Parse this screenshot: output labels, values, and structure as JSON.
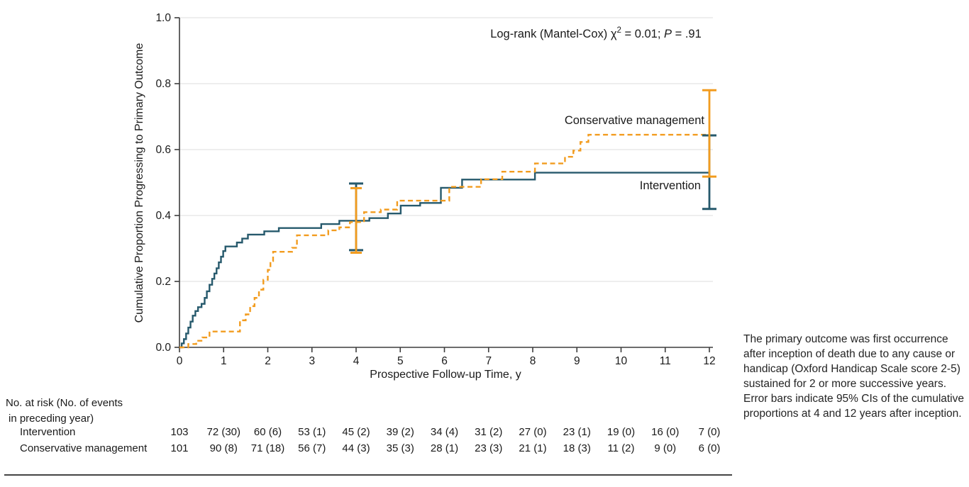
{
  "figure": {
    "annotation": {
      "prefix": "Log-rank (Mantel-Cox) χ",
      "sup": "2",
      "mid": " = 0.01; ",
      "p_label": "P",
      "p_value": " = .91"
    }
  },
  "chart_data": {
    "type": "line",
    "subtype": "kaplan-meier-step-curves",
    "title": "",
    "xlabel": "Prospective Follow-up Time, y",
    "ylabel": "Cumulative Proportion Progressing to Primary Outcome",
    "xlim": [
      0,
      12
    ],
    "ylim": [
      0,
      1.0
    ],
    "x_ticks": [
      "0",
      "1",
      "2",
      "3",
      "4",
      "5",
      "6",
      "7",
      "8",
      "9",
      "10",
      "11",
      "12"
    ],
    "y_ticks": [
      "0.0",
      "0.2",
      "0.4",
      "0.6",
      "0.8",
      "1.0"
    ],
    "grid": "horizontal gridlines at each y tick",
    "legend_position": "labels placed inline near curve ends",
    "series": [
      {
        "name": "Intervention",
        "line_style": "solid",
        "color": "#26596C",
        "steps": [
          [
            0,
            0
          ],
          [
            0.05,
            0.012
          ],
          [
            0.1,
            0.025
          ],
          [
            0.15,
            0.042
          ],
          [
            0.2,
            0.06
          ],
          [
            0.25,
            0.078
          ],
          [
            0.3,
            0.096
          ],
          [
            0.36,
            0.11
          ],
          [
            0.42,
            0.122
          ],
          [
            0.5,
            0.132
          ],
          [
            0.57,
            0.15
          ],
          [
            0.62,
            0.17
          ],
          [
            0.68,
            0.19
          ],
          [
            0.74,
            0.208
          ],
          [
            0.79,
            0.224
          ],
          [
            0.84,
            0.24
          ],
          [
            0.89,
            0.258
          ],
          [
            0.94,
            0.275
          ],
          [
            0.99,
            0.292
          ],
          [
            1.04,
            0.306
          ],
          [
            1.3,
            0.318
          ],
          [
            1.42,
            0.33
          ],
          [
            1.55,
            0.342
          ],
          [
            1.92,
            0.352
          ],
          [
            2.25,
            0.362
          ],
          [
            3.21,
            0.374
          ],
          [
            3.62,
            0.384
          ],
          [
            4.3,
            0.392
          ],
          [
            4.72,
            0.406
          ],
          [
            5.01,
            0.43
          ],
          [
            5.45,
            0.438
          ],
          [
            5.92,
            0.484
          ],
          [
            6.4,
            0.509
          ],
          [
            8.05,
            0.53
          ],
          [
            12,
            0.53
          ]
        ]
      },
      {
        "name": "Conservative management",
        "line_style": "dashed",
        "color": "#F29C1F",
        "steps": [
          [
            0,
            0
          ],
          [
            0.2,
            0.01
          ],
          [
            0.38,
            0.02
          ],
          [
            0.52,
            0.03
          ],
          [
            0.68,
            0.048
          ],
          [
            1.37,
            0.082
          ],
          [
            1.5,
            0.1
          ],
          [
            1.6,
            0.125
          ],
          [
            1.7,
            0.15
          ],
          [
            1.8,
            0.175
          ],
          [
            1.9,
            0.205
          ],
          [
            2.0,
            0.235
          ],
          [
            2.06,
            0.262
          ],
          [
            2.12,
            0.29
          ],
          [
            2.55,
            0.302
          ],
          [
            2.66,
            0.34
          ],
          [
            3.37,
            0.355
          ],
          [
            3.62,
            0.364
          ],
          [
            3.86,
            0.38
          ],
          [
            4.18,
            0.41
          ],
          [
            4.56,
            0.418
          ],
          [
            4.93,
            0.445
          ],
          [
            6.11,
            0.487
          ],
          [
            6.83,
            0.51
          ],
          [
            7.31,
            0.533
          ],
          [
            8.05,
            0.558
          ],
          [
            8.73,
            0.578
          ],
          [
            8.92,
            0.597
          ],
          [
            9.08,
            0.623
          ],
          [
            9.26,
            0.645
          ],
          [
            12,
            0.645
          ]
        ]
      }
    ],
    "error_bars": {
      "note": "95% CIs of cumulative proportions at 4 and 12 years",
      "bars": [
        {
          "series": "Intervention",
          "x": 4,
          "low": 0.295,
          "high": 0.497,
          "cap": 10
        },
        {
          "series": "Conservative management",
          "x": 4,
          "low": 0.287,
          "high": 0.483,
          "cap": 8
        },
        {
          "series": "Intervention",
          "x": 12,
          "low": 0.42,
          "high": 0.643,
          "cap": 10
        },
        {
          "series": "Conservative management",
          "x": 12,
          "low": 0.518,
          "high": 0.78,
          "cap": 10
        }
      ]
    }
  },
  "risk_table": {
    "header_lines": [
      "No. at risk (No. of events",
      "in preceding year)"
    ],
    "rows": [
      {
        "label": "Intervention",
        "values": [
          "103",
          "72 (30)",
          "60 (6)",
          "53 (1)",
          "45 (2)",
          "39 (2)",
          "34 (4)",
          "31 (2)",
          "27 (0)",
          "23 (1)",
          "19 (0)",
          "16 (0)",
          "7 (0)"
        ]
      },
      {
        "label": "Conservative management",
        "values": [
          "101",
          "90 (8)",
          "71 (18)",
          "56 (7)",
          "44 (3)",
          "35 (3)",
          "28 (1)",
          "23 (3)",
          "21 (1)",
          "18 (3)",
          "11 (2)",
          "9 (0)",
          "6 (0)"
        ]
      }
    ]
  },
  "caption": {
    "text": "The primary outcome was first occurrence after inception of death due to any cause or handicap (Oxford Handicap Scale score 2-5) sustained for 2 or more successive years. Error bars indicate 95% CIs of the cumulative proportions at 4 and 12 years after inception."
  }
}
